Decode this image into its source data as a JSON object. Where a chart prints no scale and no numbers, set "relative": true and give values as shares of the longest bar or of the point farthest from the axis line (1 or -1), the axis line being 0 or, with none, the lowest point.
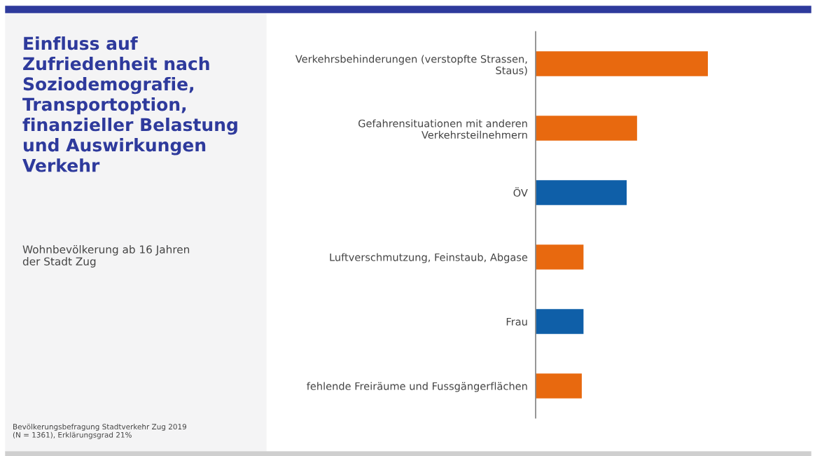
{
  "chart_data": {
    "type": "bar",
    "orientation": "horizontal",
    "relative": true,
    "title": "Einfluss auf\nZufriedenheit nach\nSoziodemografie,\nTransportoption,\nfinanzieller Belastung\nund Auswirkungen\nVerkehr",
    "subtitle": "Wohnbevölkerung ab 16 Jahren\nder Stadt Zug",
    "annotations": [
      "Bevölkerungsbefragung Stadtverkehr Zug 2019\n(N = 1361), Erklärungsgrad 21%"
    ],
    "categories": [
      "Verkehrsbehinderungen (verstopfte Strassen,\nStaus)",
      "Gefahrensituationen mit anderen\nVerkehrsteilnehmern",
      "ÖV",
      "Luftverschmutzung, Feinstaub, Abgase",
      "Frau",
      "fehlende Freiräume und Fussgängerflächen"
    ],
    "values": [
      1,
      0.59,
      0.53,
      0.28,
      0.28,
      0.27
    ],
    "colors": [
      "#e8690f",
      "#e8690f",
      "#0f5fa8",
      "#e8690f",
      "#0f5fa8",
      "#e8690f"
    ],
    "grid": false,
    "legend": false
  }
}
